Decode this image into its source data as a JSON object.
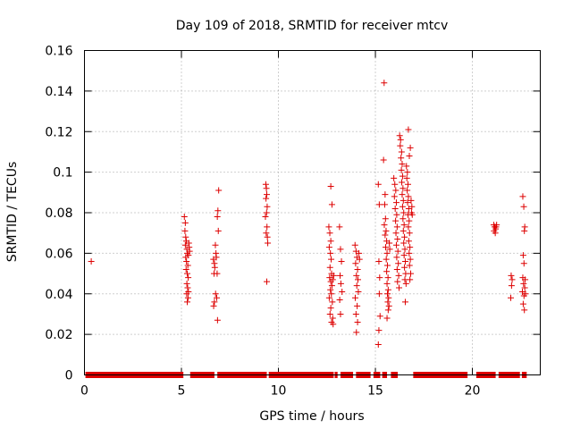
{
  "chart_data": {
    "type": "scatter",
    "title": "Day 109 of 2018, SRMTID for receiver mtcv",
    "xlabel": "GPS time / hours",
    "ylabel": "SRMTID / TECUs",
    "xlim": [
      0,
      23.5
    ],
    "ylim": [
      0,
      0.16
    ],
    "x_ticks": [
      0,
      5,
      10,
      15,
      20
    ],
    "x_tick_labels": [
      "0",
      "5",
      "10",
      "15",
      "20"
    ],
    "y_ticks": [
      0,
      0.02,
      0.04,
      0.06,
      0.08,
      0.1,
      0.12,
      0.14,
      0.16
    ],
    "y_tick_labels": [
      "0",
      "0.02",
      "0.04",
      "0.06",
      "0.08",
      "0.1",
      "0.12",
      "0.14",
      "0.16"
    ],
    "grid": true,
    "marker": "+",
    "marker_color": "#dd0000",
    "zero_band_ranges": [
      [
        0.05,
        5.1
      ],
      [
        5.45,
        6.7
      ],
      [
        6.85,
        9.4
      ],
      [
        9.5,
        12.85
      ],
      [
        12.9,
        13.05
      ],
      [
        13.2,
        13.85
      ],
      [
        14.0,
        14.75
      ],
      [
        14.9,
        15.25
      ],
      [
        15.35,
        15.6
      ],
      [
        15.8,
        16.15
      ],
      [
        16.95,
        19.75
      ],
      [
        20.2,
        21.2
      ],
      [
        21.35,
        22.45
      ],
      [
        22.55,
        22.8
      ]
    ],
    "series": [
      {
        "name": "SRMTID",
        "points": [
          [
            0.35,
            0.056
          ],
          [
            5.15,
            0.078
          ],
          [
            5.2,
            0.075
          ],
          [
            5.18,
            0.071
          ],
          [
            5.22,
            0.068
          ],
          [
            5.25,
            0.066
          ],
          [
            5.2,
            0.064
          ],
          [
            5.28,
            0.062
          ],
          [
            5.3,
            0.06
          ],
          [
            5.22,
            0.058
          ],
          [
            5.26,
            0.056
          ],
          [
            5.33,
            0.054
          ],
          [
            5.24,
            0.052
          ],
          [
            5.3,
            0.05
          ],
          [
            5.35,
            0.048
          ],
          [
            5.28,
            0.045
          ],
          [
            5.32,
            0.043
          ],
          [
            5.36,
            0.041
          ],
          [
            5.27,
            0.04
          ],
          [
            5.34,
            0.038
          ],
          [
            5.3,
            0.036
          ],
          [
            5.38,
            0.065
          ],
          [
            5.4,
            0.063
          ],
          [
            5.42,
            0.061
          ],
          [
            5.36,
            0.059
          ],
          [
            6.65,
            0.057
          ],
          [
            6.7,
            0.055
          ],
          [
            6.72,
            0.053
          ],
          [
            6.68,
            0.05
          ],
          [
            6.75,
            0.064
          ],
          [
            6.78,
            0.06
          ],
          [
            6.8,
            0.058
          ],
          [
            6.76,
            0.04
          ],
          [
            6.82,
            0.038
          ],
          [
            6.7,
            0.036
          ],
          [
            6.66,
            0.034
          ],
          [
            6.85,
            0.078
          ],
          [
            6.88,
            0.081
          ],
          [
            6.9,
            0.071
          ],
          [
            6.92,
            0.091
          ],
          [
            6.86,
            0.027
          ],
          [
            6.84,
            0.05
          ],
          [
            9.35,
            0.094
          ],
          [
            9.38,
            0.092
          ],
          [
            9.4,
            0.089
          ],
          [
            9.36,
            0.087
          ],
          [
            9.42,
            0.083
          ],
          [
            9.39,
            0.08
          ],
          [
            9.33,
            0.078
          ],
          [
            9.41,
            0.073
          ],
          [
            9.37,
            0.07
          ],
          [
            9.43,
            0.068
          ],
          [
            9.45,
            0.065
          ],
          [
            9.4,
            0.046
          ],
          [
            12.6,
            0.073
          ],
          [
            12.65,
            0.07
          ],
          [
            12.7,
            0.066
          ],
          [
            12.62,
            0.063
          ],
          [
            12.68,
            0.06
          ],
          [
            12.72,
            0.057
          ],
          [
            12.66,
            0.053
          ],
          [
            12.74,
            0.05
          ],
          [
            12.64,
            0.048
          ],
          [
            12.7,
            0.046
          ],
          [
            12.76,
            0.044
          ],
          [
            12.68,
            0.042
          ],
          [
            12.73,
            0.04
          ],
          [
            12.62,
            0.038
          ],
          [
            12.78,
            0.036
          ],
          [
            12.7,
            0.033
          ],
          [
            12.66,
            0.03
          ],
          [
            12.8,
            0.028
          ],
          [
            12.74,
            0.026
          ],
          [
            12.82,
            0.025
          ],
          [
            12.7,
            0.093
          ],
          [
            12.76,
            0.084
          ],
          [
            12.8,
            0.047
          ],
          [
            12.85,
            0.049
          ],
          [
            13.15,
            0.073
          ],
          [
            13.2,
            0.062
          ],
          [
            13.25,
            0.056
          ],
          [
            13.18,
            0.049
          ],
          [
            13.22,
            0.045
          ],
          [
            13.28,
            0.041
          ],
          [
            13.16,
            0.037
          ],
          [
            13.2,
            0.03
          ],
          [
            13.95,
            0.064
          ],
          [
            14.0,
            0.061
          ],
          [
            14.05,
            0.058
          ],
          [
            13.98,
            0.055
          ],
          [
            14.08,
            0.052
          ],
          [
            14.02,
            0.049
          ],
          [
            14.1,
            0.047
          ],
          [
            14.04,
            0.044
          ],
          [
            14.12,
            0.041
          ],
          [
            13.96,
            0.038
          ],
          [
            14.06,
            0.034
          ],
          [
            14.0,
            0.03
          ],
          [
            14.08,
            0.026
          ],
          [
            14.02,
            0.021
          ],
          [
            14.15,
            0.06
          ],
          [
            14.18,
            0.057
          ],
          [
            15.15,
            0.094
          ],
          [
            15.2,
            0.084
          ],
          [
            15.18,
            0.056
          ],
          [
            15.22,
            0.048
          ],
          [
            15.2,
            0.04
          ],
          [
            15.24,
            0.029
          ],
          [
            15.18,
            0.022
          ],
          [
            15.15,
            0.015
          ],
          [
            15.45,
            0.144
          ],
          [
            15.42,
            0.106
          ],
          [
            15.5,
            0.089
          ],
          [
            15.48,
            0.084
          ],
          [
            15.52,
            0.077
          ],
          [
            15.46,
            0.074
          ],
          [
            15.55,
            0.071
          ],
          [
            15.5,
            0.069
          ],
          [
            15.58,
            0.066
          ],
          [
            15.53,
            0.063
          ],
          [
            15.6,
            0.06
          ],
          [
            15.56,
            0.057
          ],
          [
            15.62,
            0.054
          ],
          [
            15.58,
            0.051
          ],
          [
            15.65,
            0.048
          ],
          [
            15.6,
            0.045
          ],
          [
            15.66,
            0.042
          ],
          [
            15.62,
            0.04
          ],
          [
            15.68,
            0.038
          ],
          [
            15.64,
            0.036
          ],
          [
            15.7,
            0.034
          ],
          [
            15.66,
            0.032
          ],
          [
            15.6,
            0.028
          ],
          [
            15.72,
            0.065
          ],
          [
            15.74,
            0.062
          ],
          [
            15.95,
            0.097
          ],
          [
            16.0,
            0.094
          ],
          [
            16.05,
            0.091
          ],
          [
            15.98,
            0.088
          ],
          [
            16.08,
            0.085
          ],
          [
            16.02,
            0.082
          ],
          [
            16.1,
            0.079
          ],
          [
            16.04,
            0.076
          ],
          [
            16.12,
            0.073
          ],
          [
            16.06,
            0.07
          ],
          [
            16.14,
            0.067
          ],
          [
            16.08,
            0.064
          ],
          [
            16.16,
            0.061
          ],
          [
            16.1,
            0.058
          ],
          [
            16.18,
            0.055
          ],
          [
            16.12,
            0.052
          ],
          [
            16.2,
            0.049
          ],
          [
            16.14,
            0.046
          ],
          [
            16.22,
            0.043
          ],
          [
            16.25,
            0.118
          ],
          [
            16.3,
            0.116
          ],
          [
            16.28,
            0.113
          ],
          [
            16.35,
            0.11
          ],
          [
            16.32,
            0.107
          ],
          [
            16.38,
            0.104
          ],
          [
            16.34,
            0.101
          ],
          [
            16.4,
            0.098
          ],
          [
            16.36,
            0.095
          ],
          [
            16.42,
            0.092
          ],
          [
            16.38,
            0.089
          ],
          [
            16.44,
            0.086
          ],
          [
            16.4,
            0.083
          ],
          [
            16.46,
            0.08
          ],
          [
            16.42,
            0.077
          ],
          [
            16.48,
            0.074
          ],
          [
            16.44,
            0.071
          ],
          [
            16.5,
            0.068
          ],
          [
            16.46,
            0.065
          ],
          [
            16.52,
            0.062
          ],
          [
            16.48,
            0.059
          ],
          [
            16.54,
            0.056
          ],
          [
            16.5,
            0.053
          ],
          [
            16.56,
            0.05
          ],
          [
            16.52,
            0.047
          ],
          [
            16.58,
            0.045
          ],
          [
            16.54,
            0.036
          ],
          [
            16.6,
            0.103
          ],
          [
            16.65,
            0.1
          ],
          [
            16.62,
            0.097
          ],
          [
            16.68,
            0.094
          ],
          [
            16.64,
            0.091
          ],
          [
            16.7,
            0.088
          ],
          [
            16.66,
            0.085
          ],
          [
            16.72,
            0.082
          ],
          [
            16.68,
            0.079
          ],
          [
            16.74,
            0.076
          ],
          [
            16.7,
            0.073
          ],
          [
            16.76,
            0.07
          ],
          [
            16.72,
            0.066
          ],
          [
            16.78,
            0.063
          ],
          [
            16.74,
            0.06
          ],
          [
            16.8,
            0.057
          ],
          [
            16.76,
            0.054
          ],
          [
            16.82,
            0.05
          ],
          [
            16.78,
            0.047
          ],
          [
            16.84,
            0.086
          ],
          [
            16.86,
            0.08
          ],
          [
            16.8,
            0.112
          ],
          [
            16.75,
            0.108
          ],
          [
            16.7,
            0.121
          ],
          [
            16.88,
            0.083
          ],
          [
            16.9,
            0.079
          ],
          [
            21.1,
            0.074
          ],
          [
            21.15,
            0.073
          ],
          [
            21.2,
            0.072
          ],
          [
            21.12,
            0.071
          ],
          [
            21.18,
            0.07
          ],
          [
            21.25,
            0.074
          ],
          [
            21.22,
            0.073
          ],
          [
            22.0,
            0.049
          ],
          [
            22.05,
            0.047
          ],
          [
            22.02,
            0.044
          ],
          [
            21.98,
            0.038
          ],
          [
            22.6,
            0.088
          ],
          [
            22.65,
            0.083
          ],
          [
            22.7,
            0.073
          ],
          [
            22.68,
            0.071
          ],
          [
            22.62,
            0.059
          ],
          [
            22.66,
            0.055
          ],
          [
            22.6,
            0.048
          ],
          [
            22.64,
            0.045
          ],
          [
            22.7,
            0.043
          ],
          [
            22.58,
            0.041
          ],
          [
            22.66,
            0.039
          ],
          [
            22.62,
            0.035
          ],
          [
            22.68,
            0.032
          ],
          [
            22.72,
            0.047
          ],
          [
            22.74,
            0.04
          ]
        ]
      }
    ]
  }
}
